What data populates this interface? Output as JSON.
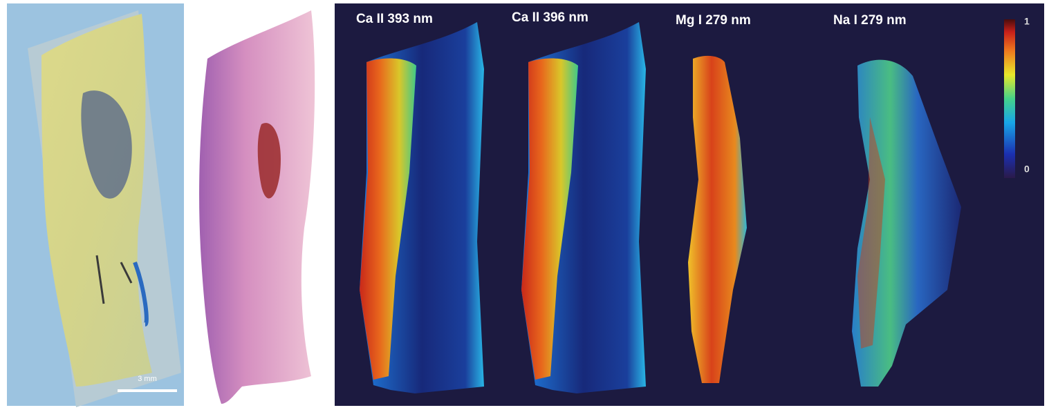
{
  "panels": {
    "photo": {
      "scale_bar_label": "3 mm"
    },
    "maps": [
      {
        "label": "Ca II 393 nm"
      },
      {
        "label": "Ca II 396 nm"
      },
      {
        "label": "Mg I 279 nm"
      },
      {
        "label": "Na I 279 nm"
      }
    ],
    "colorbar": {
      "max_label": "1",
      "min_label": "0"
    }
  }
}
